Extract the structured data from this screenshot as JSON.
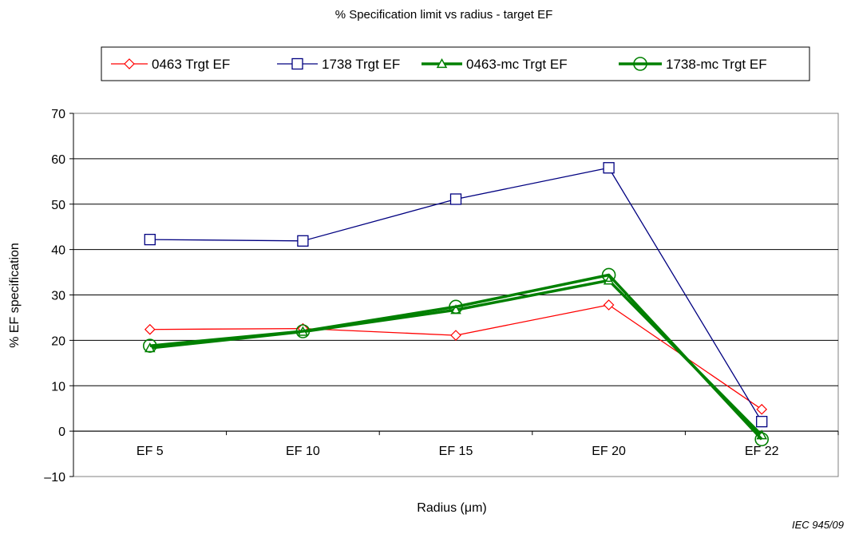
{
  "chart_data": {
    "type": "line",
    "title": "% Specification limit vs radius - target EF",
    "xlabel": "Radius   (μm)",
    "ylabel": "% EF specification",
    "categories": [
      "EF 5",
      "EF 10",
      "EF 15",
      "EF 20",
      "EF 22"
    ],
    "ylim": [
      -10,
      70
    ],
    "yticks": [
      -10,
      0,
      10,
      20,
      30,
      40,
      50,
      60,
      70
    ],
    "ytick_labels": [
      "–10",
      "0",
      "10",
      "20",
      "30",
      "40",
      "50",
      "60",
      "70"
    ],
    "grid": "horizontal",
    "legend_position": "top",
    "series": [
      {
        "name": "0463 Trgt EF",
        "values": [
          22.4,
          22.6,
          21.1,
          27.8,
          4.8
        ],
        "color": "#ff0000",
        "marker": "diamond"
      },
      {
        "name": "1738 Trgt EF",
        "values": [
          42.2,
          41.9,
          51.1,
          58.0,
          2.1
        ],
        "color": "#000080",
        "marker": "square"
      },
      {
        "name": "0463-mc Trgt EF",
        "values": [
          18.3,
          21.9,
          26.7,
          33.2,
          -0.9
        ],
        "color": "#008000",
        "marker": "triangle"
      },
      {
        "name": "1738-mc Trgt EF",
        "values": [
          18.8,
          22.0,
          27.4,
          34.4,
          -1.8
        ],
        "color": "#008000",
        "marker": "circle"
      }
    ]
  },
  "source_label": "IEC   945/09"
}
